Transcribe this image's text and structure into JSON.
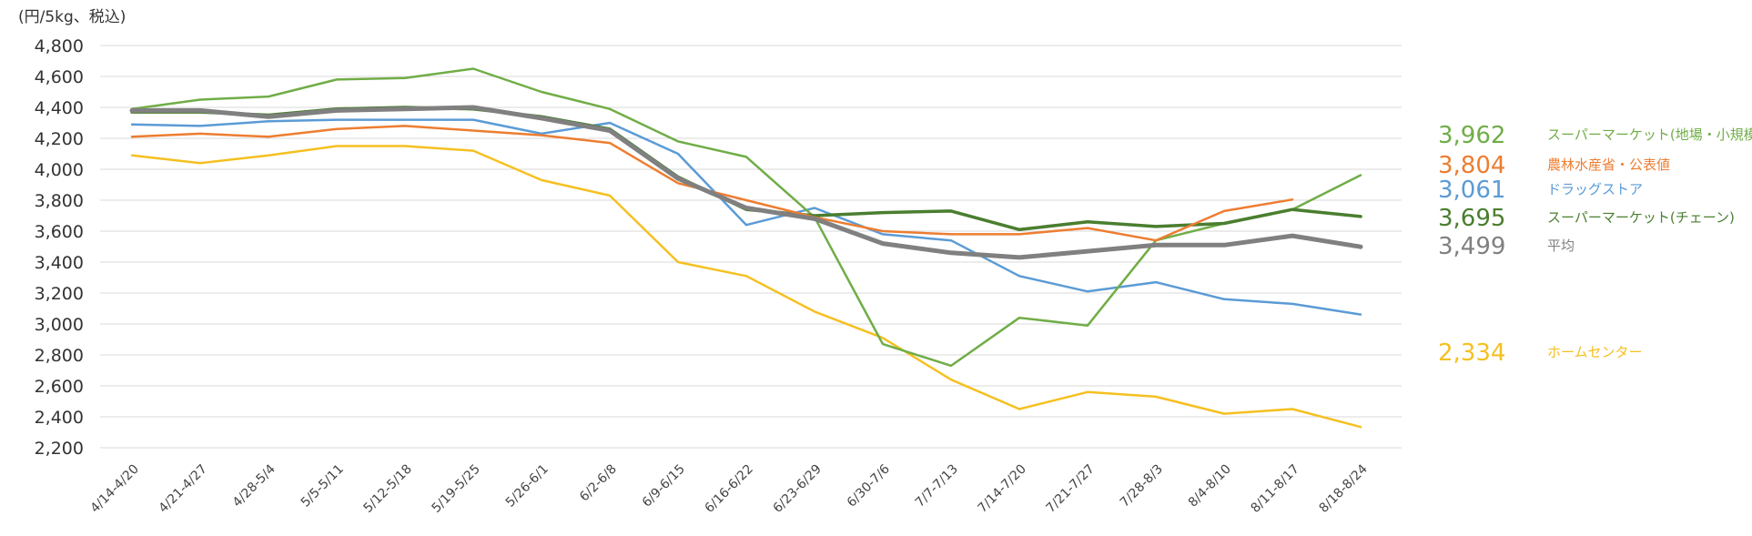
{
  "chart_data": {
    "type": "line",
    "unit_label": "(円/5kg、税込)",
    "categories": [
      "4/14-4/20",
      "4/21-4/27",
      "4/28-5/4",
      "5/5-5/11",
      "5/12-5/18",
      "5/19-5/25",
      "5/26-6/1",
      "6/2-6/8",
      "6/9-6/15",
      "6/16-6/22",
      "6/23-6/29",
      "6/30-7/6",
      "7/7-7/13",
      "7/14-7/20",
      "7/21-7/27",
      "7/28-8/3",
      "8/4-8/10",
      "8/11-8/17",
      "8/18-8/24"
    ],
    "y_ticks": [
      "2,200",
      "2,400",
      "2,600",
      "2,800",
      "3,000",
      "3,200",
      "3,400",
      "3,600",
      "3,800",
      "4,000",
      "4,200",
      "4,400",
      "4,600",
      "4,800"
    ],
    "ylim": [
      2200,
      4800
    ],
    "grid": "horizontal",
    "series": [
      {
        "name": "ホームセンター",
        "color": "#f5c021",
        "stroke": 2.5,
        "end_label": "2,334",
        "values": [
          4090,
          4040,
          4090,
          4150,
          4150,
          4120,
          3930,
          3830,
          3400,
          3310,
          3080,
          2910,
          2640,
          2450,
          2560,
          2530,
          2420,
          2450,
          2334
        ]
      },
      {
        "name": "ドラッグストア",
        "color": "#5b9bd5",
        "stroke": 2.5,
        "end_label": "3,061",
        "values": [
          4290,
          4280,
          4310,
          4320,
          4320,
          4320,
          4230,
          4300,
          4100,
          3640,
          3750,
          3580,
          3540,
          3310,
          3210,
          3270,
          3160,
          3130,
          3061
        ]
      },
      {
        "name": "スーパーマーケット(地場・小規模)",
        "color": "#70ad47",
        "stroke": 2.5,
        "end_label": "3,962",
        "values": [
          4390,
          4450,
          4470,
          4580,
          4590,
          4650,
          4500,
          4390,
          4180,
          4080,
          3690,
          2870,
          2730,
          3040,
          2990,
          3540,
          3650,
          3740,
          3962
        ]
      },
      {
        "name": "スーパーマーケット(チェーン)",
        "color": "#4a7e2f",
        "stroke": 3.5,
        "end_label": "3,695",
        "values": [
          4370,
          4370,
          4350,
          4390,
          4400,
          4390,
          4340,
          4260,
          3950,
          3740,
          3700,
          3720,
          3730,
          3610,
          3660,
          3630,
          3650,
          3740,
          3695
        ]
      },
      {
        "name": "農林水産省・公表値",
        "color": "#ed7d31",
        "stroke": 2.5,
        "end_label": "3,804",
        "values": [
          4210,
          4230,
          4210,
          4260,
          4280,
          4250,
          4220,
          4170,
          3910,
          3800,
          3690,
          3600,
          3580,
          3580,
          3620,
          3540,
          3730,
          3804,
          null
        ]
      },
      {
        "name": "平均",
        "color": "#808080",
        "stroke": 5,
        "end_label": "3,499",
        "values": [
          4380,
          4380,
          4340,
          4380,
          4390,
          4400,
          4330,
          4250,
          3940,
          3750,
          3680,
          3520,
          3460,
          3430,
          3470,
          3510,
          3510,
          3570,
          3499
        ]
      }
    ]
  }
}
